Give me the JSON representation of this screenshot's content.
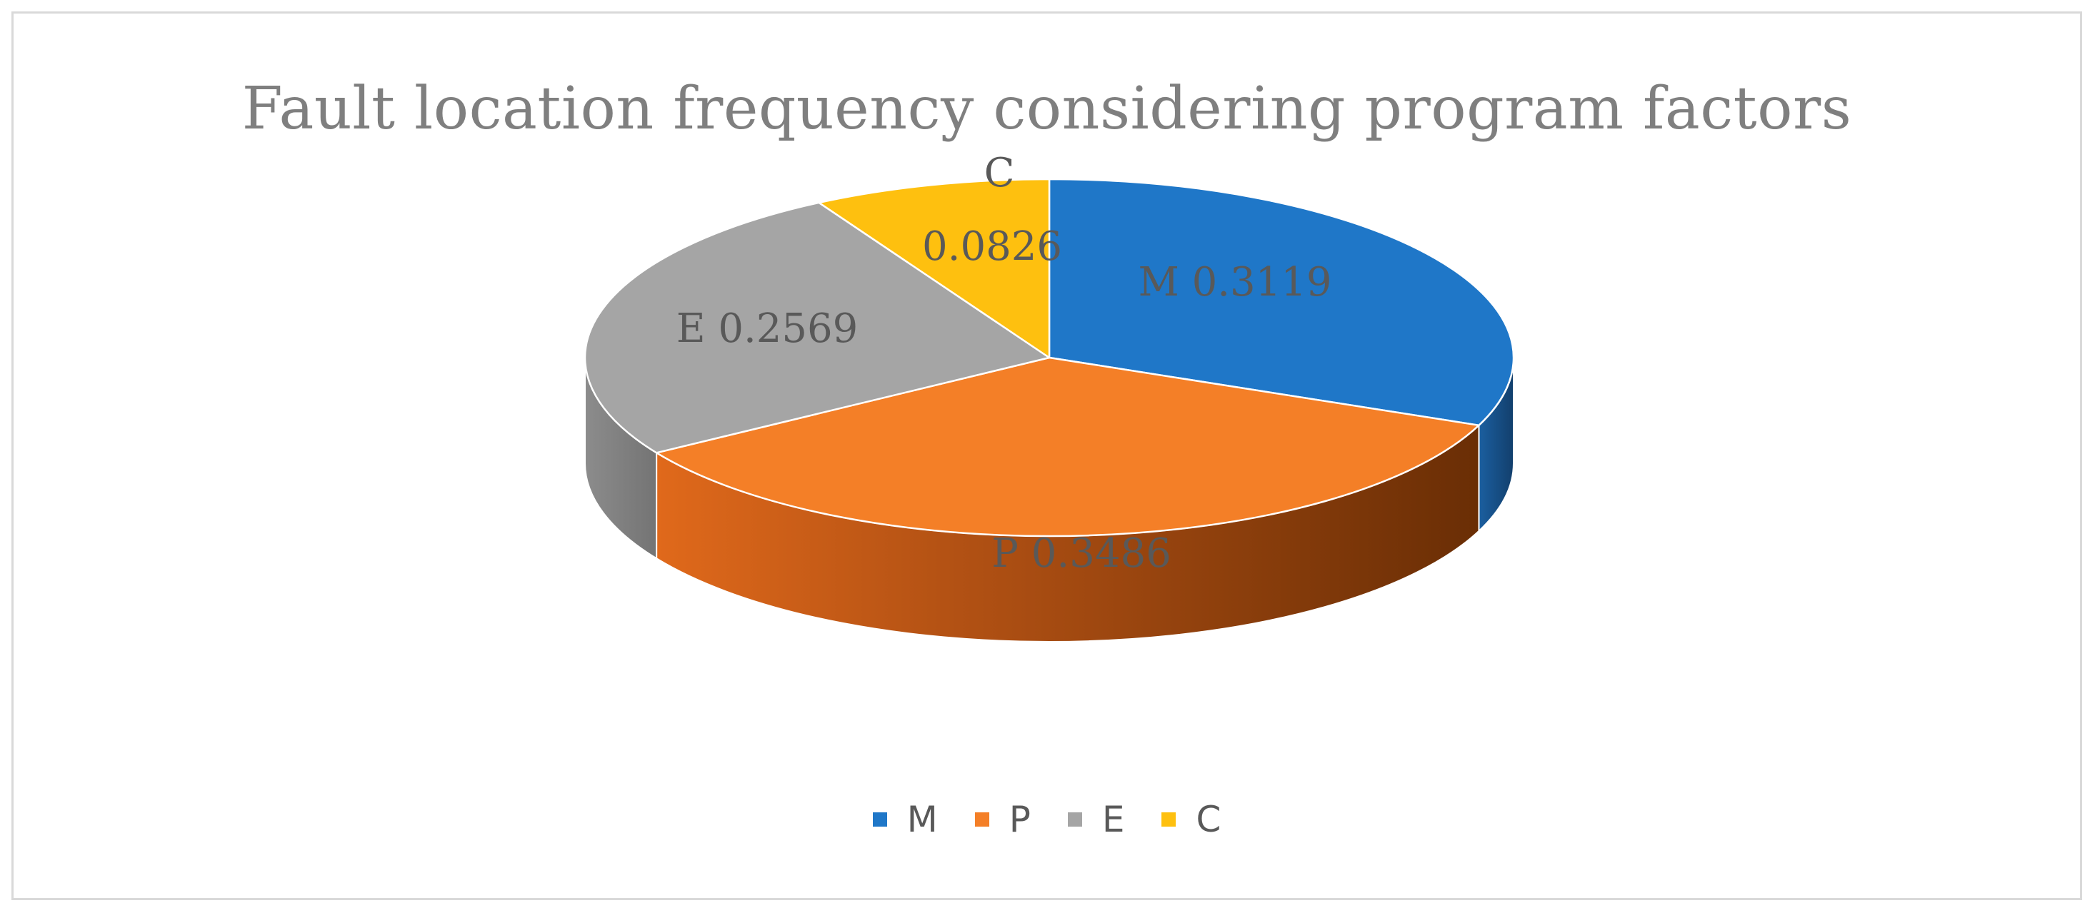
{
  "chart_data": {
    "type": "pie",
    "style": "3d",
    "title": "Fault location frequency considering program factors",
    "slices": [
      {
        "label": "M",
        "value": 0.3119,
        "color": "#1f77c8"
      },
      {
        "label": "P",
        "value": 0.3486,
        "color": "#f47f27"
      },
      {
        "label": "E",
        "value": 0.2569,
        "color": "#a5a5a5"
      },
      {
        "label": "C",
        "value": 0.0826,
        "color": "#fec00f"
      }
    ],
    "legend_position": "bottom",
    "data_labels": [
      "M  0.3119",
      "P  0.3486",
      "E  0.2569",
      "C",
      "0.0826"
    ]
  }
}
